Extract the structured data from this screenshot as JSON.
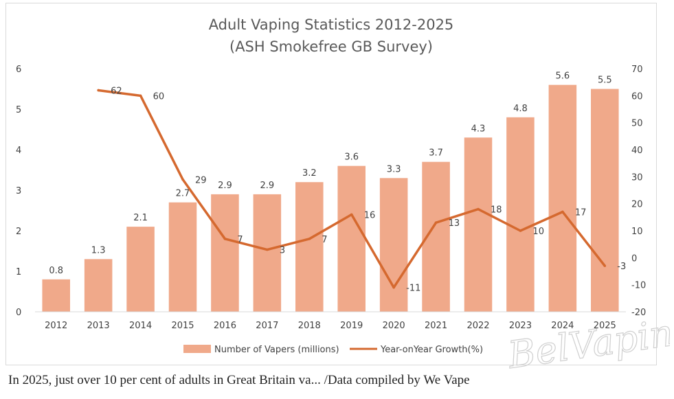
{
  "chart_data": {
    "type": "bar+line",
    "title_line1": "Adult Vaping Statistics 2012-2025",
    "title_line2": "(ASH Smokefree GB Survey)",
    "categories": [
      "2012",
      "2013",
      "2014",
      "2015",
      "2016",
      "2017",
      "2018",
      "2019",
      "2020",
      "2021",
      "2022",
      "2023",
      "2024",
      "2025"
    ],
    "bar_series": {
      "name": "Number of Vapers (millions)",
      "values": [
        0.8,
        1.3,
        2.1,
        2.7,
        2.9,
        2.9,
        3.2,
        3.6,
        3.3,
        3.7,
        4.3,
        4.8,
        5.6,
        5.5
      ],
      "labels": [
        "0.8",
        "1.3",
        "2.1",
        "2.7",
        "2.9",
        "2.9",
        "3.2",
        "3.6",
        "3.3",
        "3.7",
        "4.3",
        "4.8",
        "5.6",
        "5.5"
      ],
      "color": "#f0a98a"
    },
    "line_series": {
      "name": "Year-onYear Growth(%)",
      "values": [
        null,
        62,
        60,
        29,
        7,
        3,
        7,
        16,
        -11,
        13,
        18,
        10,
        17,
        -3
      ],
      "labels": [
        "",
        "62",
        "60",
        "29",
        "7",
        "3",
        "7",
        "16",
        "-11",
        "13",
        "18",
        "10",
        "17",
        "-3"
      ],
      "color": "#d5692f"
    },
    "y_left": {
      "min": 0,
      "max": 6,
      "ticks": [
        "0",
        "1",
        "2",
        "3",
        "4",
        "5",
        "6"
      ]
    },
    "y_right": {
      "min": -20,
      "max": 70,
      "ticks": [
        "-20",
        "-10",
        "0",
        "10",
        "20",
        "30",
        "40",
        "50",
        "60",
        "70"
      ]
    },
    "grid": false,
    "legend_position": "bottom"
  },
  "watermark": "BelVaping",
  "caption": "In 2025, just over 10 per cent of adults in Great Britain va...   /Data compiled by We Vape"
}
